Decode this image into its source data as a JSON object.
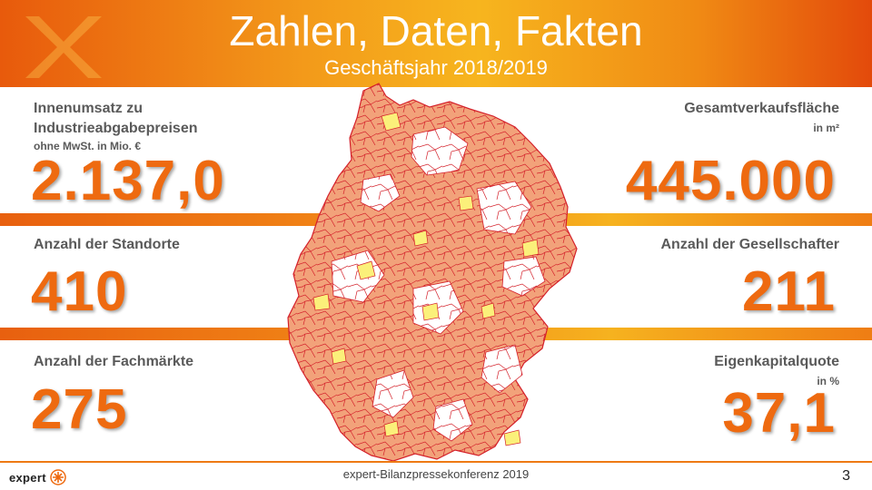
{
  "header": {
    "title": "Zahlen, Daten, Fakten",
    "subtitle": "Geschäftsjahr 2018/2019"
  },
  "stats": {
    "innenumsatz": {
      "label_line1": "Innenumsatz zu",
      "label_line2": "Industrieabgabepreisen",
      "label_sub": "ohne MwSt. in Mio. €",
      "value": "2.137,0"
    },
    "standorte": {
      "label": "Anzahl der Standorte",
      "value": "410"
    },
    "fachmaerkte": {
      "label": "Anzahl der Fachmärkte",
      "value": "275"
    },
    "verkaufsflaeche": {
      "label": "Gesamtverkaufsfläche",
      "unit": "in m²",
      "value": "445.000"
    },
    "gesellschafter": {
      "label": "Anzahl der Gesellschafter",
      "value": "211"
    },
    "eigenkapital": {
      "label": "Eigenkapitalquote",
      "unit": "in %",
      "value": "37,1"
    }
  },
  "footer": {
    "logo_text": "expert",
    "conference": "expert-Bilanzpressekonferenz 2019",
    "page_number": "3"
  },
  "colors": {
    "accent": "#ee6a10",
    "map_orange": "#f2a27a",
    "map_yellow": "#fbf07a",
    "map_border": "#d4202a"
  },
  "icons": {
    "logo": "expert-star-icon",
    "map": "germany-districts-map"
  }
}
